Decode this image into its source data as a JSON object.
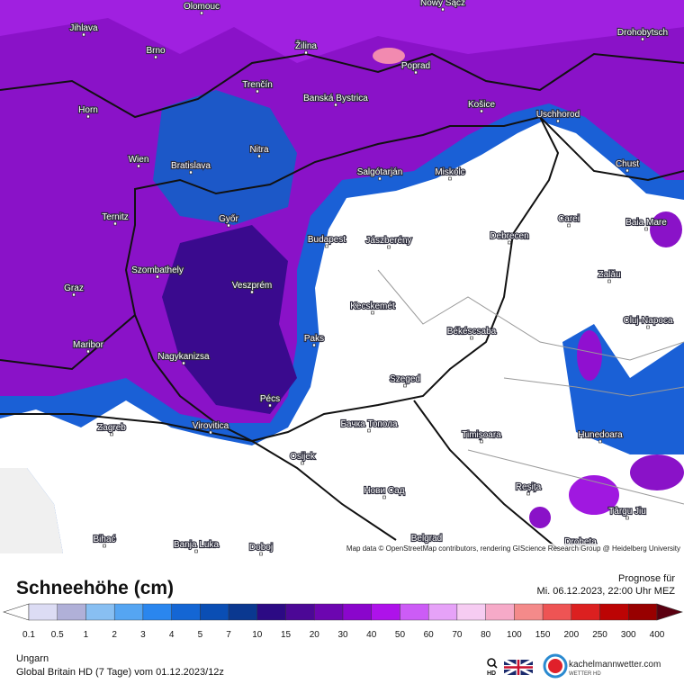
{
  "map": {
    "attribution": "Map data © OpenStreetMap contributors, rendering GIScience Research Group @ Heidelberg University",
    "cities": [
      "Olomouc",
      "Nowy Sącz",
      "Jihlava",
      "Brno",
      "Žilina",
      "Poprad",
      "Drohobytsch",
      "Horn",
      "Trenčín",
      "Banská Bystrica",
      "Košice",
      "Uschhorod",
      "Nitra",
      "Wien",
      "Bratislava",
      "Salgótarján",
      "Miskolc",
      "Chust",
      "Ternitz",
      "Győr",
      "Budapest",
      "Jászberény",
      "Debrecen",
      "Carei",
      "Baia Mare",
      "Szombathely",
      "Zalău",
      "Graz",
      "Veszprém",
      "Kecskemét",
      "Cluj-Napoca",
      "Békéscsaba",
      "Paks",
      "Maribor",
      "Nagykanizsa",
      "Szeged",
      "Pécs",
      "Zagreb",
      "Virovitica",
      "Бачка Топола",
      "Timișoara",
      "Hunedoara",
      "Osijek",
      "Reșița",
      "Нови Сад",
      "Târgu Jiu",
      "Bihać",
      "Banja Luka",
      "Doboj",
      "Belgrad",
      "Drobeta"
    ]
  },
  "legend": {
    "title": "Schneehöhe (cm)",
    "ticks": [
      0.1,
      0.5,
      1,
      2,
      3,
      4,
      5,
      7,
      10,
      15,
      20,
      30,
      40,
      50,
      60,
      70,
      80,
      100,
      150,
      200,
      250,
      300,
      400
    ],
    "colors": [
      "#dcdcf4",
      "#b0b0d8",
      "#88bff2",
      "#55a5f2",
      "#2a86ee",
      "#1466d4",
      "#0a4eb4",
      "#0a3890",
      "#2c0a84",
      "#4c0896",
      "#6c06b0",
      "#8a06cc",
      "#ae12ea",
      "#cc5cf6",
      "#e6a2f8",
      "#f6ccf2",
      "#f6aac8",
      "#f48a8a",
      "#ee5454",
      "#dc2020",
      "#bc0404",
      "#980000"
    ],
    "under_color": "#ffffff",
    "over_color": "#5a0010"
  },
  "forecast": {
    "label": "Prognose für",
    "time": "Mi. 06.12.2023, 22:00 Uhr MEZ"
  },
  "footer": {
    "region": "Ungarn",
    "model": "Global Britain HD (7 Tage) vom 01.12.2023/12z"
  },
  "brand": {
    "search": "HD",
    "name": "kachelmannwetter.com",
    "tagline": "WETTER HD"
  }
}
